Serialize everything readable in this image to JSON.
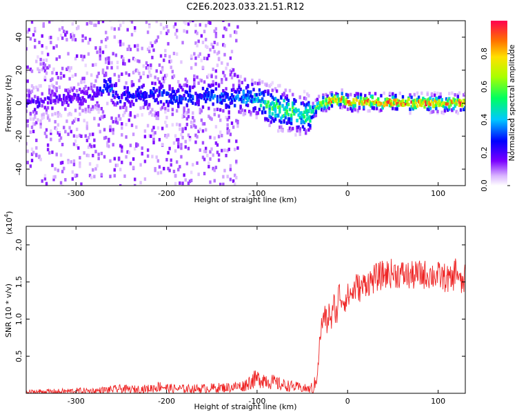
{
  "title": "C2E6.2023.033.21.51.R12",
  "colorbar": {
    "label": "Normalized spectral amplitude",
    "ticks": [
      "0.0",
      "0.2",
      "0.4",
      "0.6",
      "0.8"
    ],
    "range": [
      0,
      1
    ]
  },
  "chart_data": [
    {
      "type": "heatmap",
      "xlabel": "Height of straight line (km)",
      "ylabel": "Frequency (Hz)",
      "xlim": [
        -355,
        130
      ],
      "ylim": [
        -50,
        50
      ],
      "xticks": [
        -300,
        -200,
        -100,
        0,
        100
      ],
      "yticks": [
        -40,
        -20,
        0,
        20,
        40
      ],
      "xtick_labels": [
        "-300",
        "-200",
        "-100",
        "0",
        "100"
      ],
      "ytick_labels": [
        "-40",
        "-20",
        "0",
        "20",
        "40"
      ],
      "grid": false,
      "ridge": {
        "description": "frequency of peak amplitude vs height",
        "x": [
          -350,
          -320,
          -300,
          -280,
          -265,
          -250,
          -230,
          -210,
          -190,
          -170,
          -150,
          -130,
          -115,
          -100,
          -90,
          -80,
          -70,
          -60,
          -52,
          -45,
          -40,
          -35,
          -30,
          -25,
          -20,
          -15,
          -10,
          -5,
          0,
          5,
          10,
          20,
          30,
          40,
          50,
          60,
          80,
          100,
          120,
          130
        ],
        "y": [
          0,
          2,
          3,
          4,
          10,
          4,
          5,
          6,
          3,
          4,
          5,
          2,
          4,
          3,
          -1,
          -3,
          -4,
          -5,
          -7,
          -8,
          -6,
          -3,
          0,
          0,
          1,
          2,
          1,
          3,
          1,
          0,
          1,
          1,
          1,
          0,
          1,
          0,
          0,
          0,
          0,
          0
        ],
        "amplitude": [
          0.2,
          0.2,
          0.2,
          0.2,
          0.35,
          0.25,
          0.3,
          0.3,
          0.3,
          0.3,
          0.35,
          0.35,
          0.4,
          0.45,
          0.55,
          0.6,
          0.65,
          0.6,
          0.55,
          0.55,
          0.6,
          0.7,
          0.8,
          0.85,
          0.9,
          0.9,
          0.9,
          0.85,
          0.9,
          0.95,
          0.95,
          0.9,
          0.9,
          0.95,
          0.95,
          0.95,
          0.95,
          0.95,
          0.95,
          0.95
        ]
      }
    },
    {
      "type": "line",
      "xlabel": "Height of straight line (km)",
      "ylabel": "SNR (10 * v/v)",
      "y_scale_label": "(x10",
      "y_scale_exponent": "4",
      "xlim": [
        -355,
        130
      ],
      "ylim": [
        0,
        2.25
      ],
      "xticks": [
        -300,
        -200,
        -100,
        0,
        100
      ],
      "yticks": [
        0.5,
        1.0,
        1.5,
        2.0
      ],
      "xtick_labels": [
        "-300",
        "-200",
        "-100",
        "0",
        "100"
      ],
      "ytick_labels": [
        "0.5",
        "1.0",
        "1.5",
        "2.0"
      ],
      "grid": false,
      "series": [
        {
          "color": "#ee2222",
          "x": [
            -355,
            -340,
            -320,
            -300,
            -280,
            -260,
            -250,
            -240,
            -220,
            -205,
            -200,
            -190,
            -170,
            -150,
            -130,
            -115,
            -105,
            -95,
            -85,
            -75,
            -65,
            -55,
            -45,
            -38,
            -35,
            -32,
            -30,
            -28,
            -25,
            -22,
            -20,
            -18,
            -15,
            -12,
            -10,
            -5,
            0,
            5,
            10,
            15,
            20,
            25,
            30,
            40,
            50,
            60,
            70,
            80,
            90,
            100,
            110,
            115,
            120,
            125,
            130
          ],
          "y": [
            0.01,
            0.02,
            0.02,
            0.03,
            0.03,
            0.05,
            0.06,
            0.05,
            0.06,
            0.1,
            0.07,
            0.06,
            0.06,
            0.07,
            0.08,
            0.1,
            0.18,
            0.2,
            0.16,
            0.12,
            0.1,
            0.08,
            0.06,
            0.05,
            0.15,
            0.5,
            0.8,
            0.95,
            1.05,
            0.9,
            1.15,
            0.95,
            1.2,
            1.05,
            1.35,
            1.25,
            1.3,
            1.35,
            1.45,
            1.4,
            1.5,
            1.5,
            1.55,
            1.6,
            1.62,
            1.6,
            1.58,
            1.6,
            1.6,
            1.58,
            1.55,
            1.5,
            1.7,
            1.45,
            1.55
          ]
        }
      ]
    }
  ]
}
